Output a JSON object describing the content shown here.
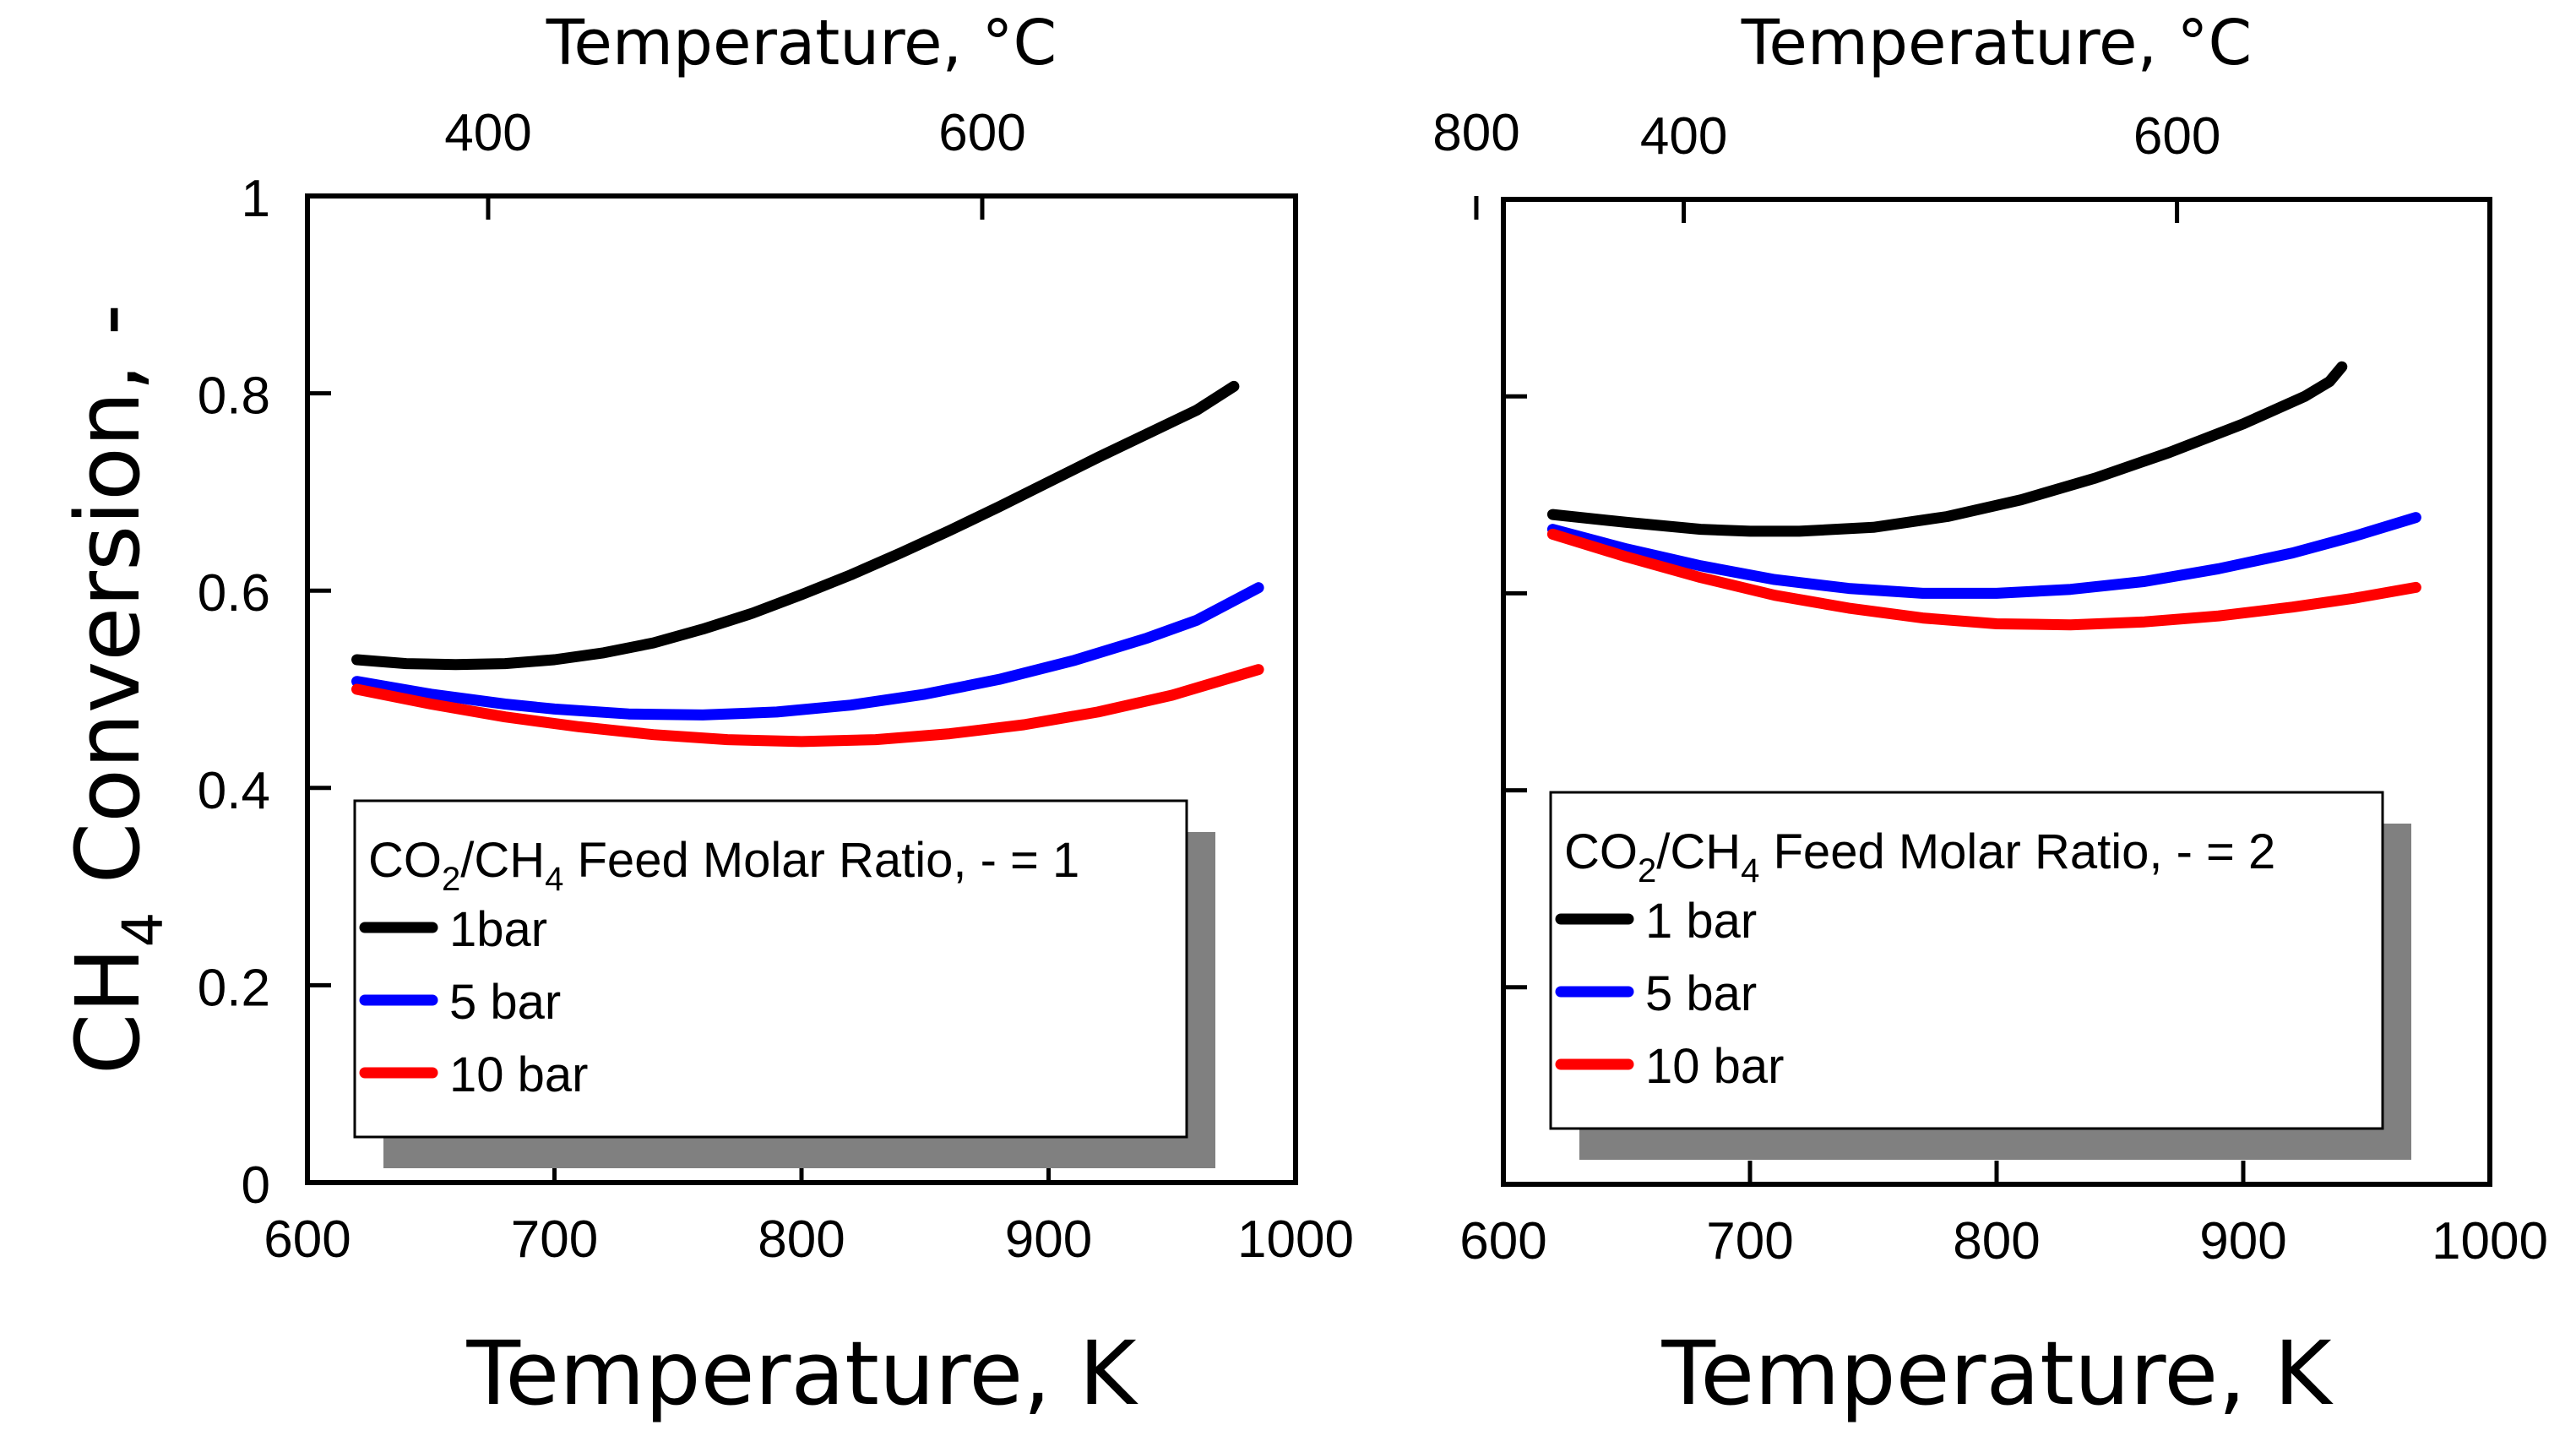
{
  "colors": {
    "1 bar": "#000000",
    "5 bar": "#0000ff",
    "10 bar": "#ff0000",
    "legend_shadow": "#808080"
  },
  "chart_data": [
    {
      "type": "line",
      "ylabel": {
        "main": "CH",
        "sub": "4",
        "rest": " Conversion, -"
      },
      "xlabel": "Temperature, K",
      "x2label": "Temperature, °C",
      "xlim": [
        600,
        1000
      ],
      "ylim": [
        0,
        1
      ],
      "x2lim": [
        326.85,
        726.85
      ],
      "xticks": [
        "600",
        "700",
        "800",
        "900",
        "1000"
      ],
      "yticks": [
        "0",
        "0.2",
        "0.4",
        "0.6",
        "0.8",
        "1"
      ],
      "x2ticks": [
        "400",
        "600",
        "800"
      ],
      "show_y_tick_labels": true,
      "legend": {
        "placement": "bottom-left",
        "title": {
          "a": "CO",
          "a_sub": "2",
          "b": "/CH",
          "b_sub": "4",
          "rest": " Feed Molar Ratio, - = 1"
        }
      },
      "series": [
        {
          "name": "1bar",
          "color_key": "1 bar",
          "points": [
            [
              620,
              0.53
            ],
            [
              640,
              0.526
            ],
            [
              660,
              0.525
            ],
            [
              680,
              0.526
            ],
            [
              700,
              0.53
            ],
            [
              720,
              0.537
            ],
            [
              740,
              0.547
            ],
            [
              760,
              0.561
            ],
            [
              780,
              0.577
            ],
            [
              800,
              0.596
            ],
            [
              820,
              0.616
            ],
            [
              840,
              0.638
            ],
            [
              860,
              0.661
            ],
            [
              880,
              0.685
            ],
            [
              900,
              0.71
            ],
            [
              920,
              0.735
            ],
            [
              940,
              0.759
            ],
            [
              960,
              0.783
            ],
            [
              975,
              0.807
            ]
          ]
        },
        {
          "name": "5 bar",
          "color_key": "5 bar",
          "points": [
            [
              620,
              0.508
            ],
            [
              650,
              0.495
            ],
            [
              680,
              0.485
            ],
            [
              700,
              0.48
            ],
            [
              730,
              0.475
            ],
            [
              760,
              0.474
            ],
            [
              790,
              0.477
            ],
            [
              820,
              0.484
            ],
            [
              850,
              0.495
            ],
            [
              880,
              0.51
            ],
            [
              910,
              0.529
            ],
            [
              940,
              0.552
            ],
            [
              960,
              0.57
            ],
            [
              985,
              0.603
            ]
          ]
        },
        {
          "name": "10 bar",
          "color_key": "10 bar",
          "points": [
            [
              620,
              0.5
            ],
            [
              650,
              0.485
            ],
            [
              680,
              0.472
            ],
            [
              710,
              0.462
            ],
            [
              740,
              0.454
            ],
            [
              770,
              0.449
            ],
            [
              800,
              0.447
            ],
            [
              830,
              0.449
            ],
            [
              860,
              0.455
            ],
            [
              890,
              0.464
            ],
            [
              920,
              0.477
            ],
            [
              950,
              0.494
            ],
            [
              985,
              0.52
            ]
          ]
        }
      ]
    },
    {
      "type": "line",
      "xlabel": "Temperature, K",
      "x2label": "Temperature, °C",
      "xlim": [
        600,
        1000
      ],
      "ylim": [
        0,
        1
      ],
      "x2lim": [
        326.85,
        726.85
      ],
      "xticks": [
        "600",
        "700",
        "800",
        "900",
        "1000"
      ],
      "yticks": [
        "0",
        "0.2",
        "0.4",
        "0.6",
        "0.8",
        "1"
      ],
      "x2ticks": [
        "400",
        "600",
        "800"
      ],
      "show_y_tick_labels": false,
      "legend": {
        "placement": "bottom-left",
        "title": {
          "a": "CO",
          "a_sub": "2",
          "b": "/CH",
          "b_sub": "4",
          "rest": " Feed Molar Ratio, - = 2"
        }
      },
      "series": [
        {
          "name": "1 bar",
          "color_key": "1 bar",
          "points": [
            [
              620,
              0.68
            ],
            [
              650,
              0.672
            ],
            [
              680,
              0.665
            ],
            [
              700,
              0.663
            ],
            [
              720,
              0.663
            ],
            [
              750,
              0.667
            ],
            [
              780,
              0.678
            ],
            [
              810,
              0.695
            ],
            [
              840,
              0.717
            ],
            [
              870,
              0.743
            ],
            [
              900,
              0.772
            ],
            [
              925,
              0.8
            ],
            [
              935,
              0.815
            ],
            [
              940,
              0.83
            ]
          ]
        },
        {
          "name": "5 bar",
          "color_key": "5 bar",
          "points": [
            [
              620,
              0.665
            ],
            [
              650,
              0.645
            ],
            [
              680,
              0.628
            ],
            [
              710,
              0.614
            ],
            [
              740,
              0.605
            ],
            [
              770,
              0.6
            ],
            [
              800,
              0.6
            ],
            [
              830,
              0.604
            ],
            [
              860,
              0.612
            ],
            [
              890,
              0.625
            ],
            [
              920,
              0.641
            ],
            [
              945,
              0.658
            ],
            [
              970,
              0.677
            ]
          ]
        },
        {
          "name": "10 bar",
          "color_key": "10 bar",
          "points": [
            [
              620,
              0.66
            ],
            [
              650,
              0.637
            ],
            [
              680,
              0.616
            ],
            [
              710,
              0.598
            ],
            [
              740,
              0.585
            ],
            [
              770,
              0.575
            ],
            [
              800,
              0.569
            ],
            [
              830,
              0.568
            ],
            [
              860,
              0.571
            ],
            [
              890,
              0.577
            ],
            [
              920,
              0.586
            ],
            [
              945,
              0.595
            ],
            [
              970,
              0.606
            ]
          ]
        }
      ]
    }
  ]
}
